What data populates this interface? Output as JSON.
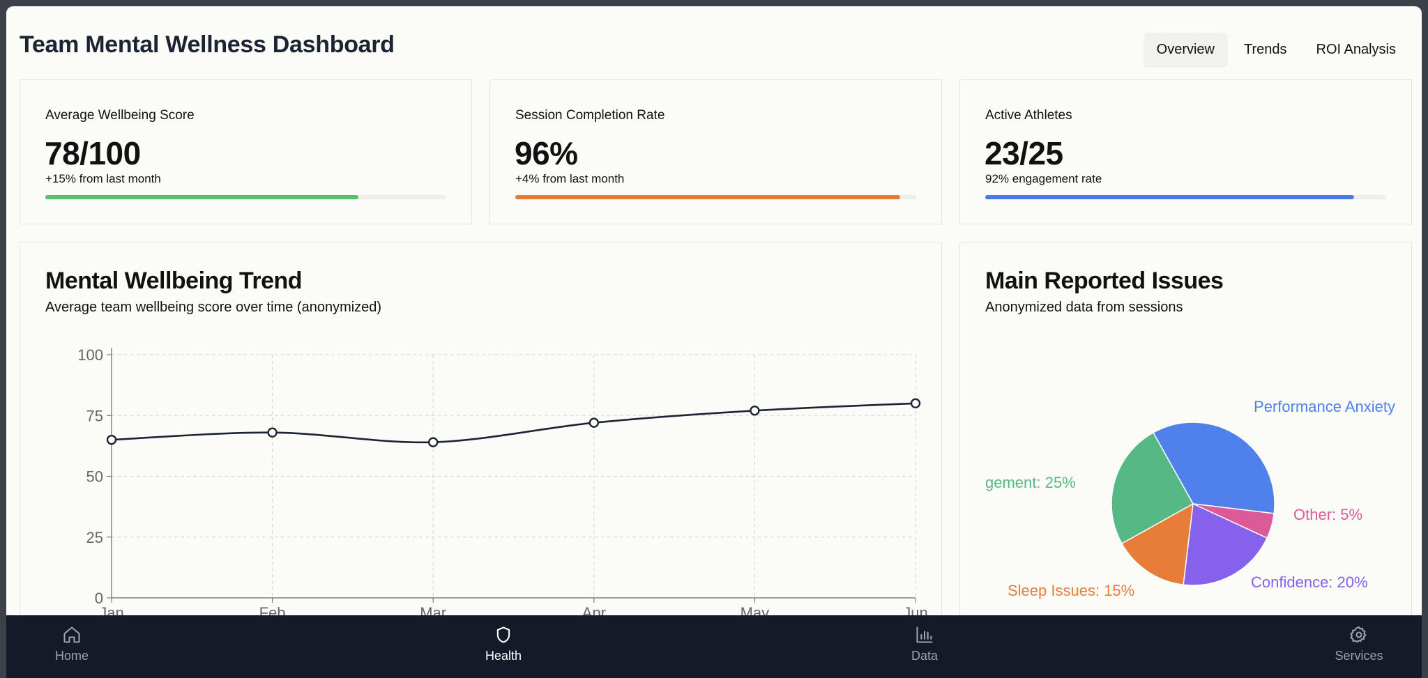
{
  "app": {
    "title": "Team Mental Wellness Dashboard",
    "tabs": [
      {
        "label": "Overview",
        "active": true
      },
      {
        "label": "Trends",
        "active": false
      },
      {
        "label": "ROI Analysis",
        "active": false
      }
    ]
  },
  "kpis": [
    {
      "label": "Average Wellbeing Score",
      "value": "78/100",
      "sub": "+15% from last month",
      "progress": 0.78,
      "color": "#5cbd6a"
    },
    {
      "label": "Session Completion Rate",
      "value": "96%",
      "sub": "+4% from last month",
      "progress": 0.96,
      "color": "#e47b36"
    },
    {
      "label": "Active Athletes",
      "value": "23/25",
      "sub": "92% engagement rate",
      "progress": 0.92,
      "color": "#4a7ae6"
    }
  ],
  "trend": {
    "title": "Mental Wellbeing Trend",
    "subtitle": "Average team wellbeing score over time (anonymized)"
  },
  "issues": {
    "title": "Main Reported Issues",
    "subtitle": "Anonymized data from sessions"
  },
  "chart_data": [
    {
      "type": "line",
      "categories": [
        "Jan",
        "Feb",
        "Mar",
        "Apr",
        "May",
        "Jun"
      ],
      "values": [
        65,
        68,
        64,
        72,
        77,
        80
      ],
      "ylim": [
        0,
        100
      ],
      "yticks": [
        "0",
        "25",
        "50",
        "75",
        "100"
      ],
      "grid": true,
      "line_color": "#1c2333"
    },
    {
      "type": "pie",
      "slices": [
        {
          "name": "Performance Anxiety",
          "value": 35,
          "color": "#4f80ec",
          "label": "Performance Anxiety"
        },
        {
          "name": "Other",
          "value": 5,
          "color": "#db5a99",
          "label": "Other: 5%"
        },
        {
          "name": "Confidence",
          "value": 20,
          "color": "#8561ec",
          "label": "Confidence: 20%"
        },
        {
          "name": "Sleep Issues",
          "value": 15,
          "color": "#e87d3a",
          "label": "Sleep Issues: 15%"
        },
        {
          "name": "Stress Management",
          "value": 25,
          "color": "#56b884",
          "label": "gement: 25%"
        }
      ]
    }
  ],
  "nav": [
    {
      "label": "Home",
      "icon": "home-icon",
      "active": false
    },
    {
      "label": "Health",
      "icon": "shield-icon",
      "active": true
    },
    {
      "label": "Data",
      "icon": "bar-chart-icon",
      "active": false
    },
    {
      "label": "Services",
      "icon": "gear-icon",
      "active": false
    }
  ]
}
